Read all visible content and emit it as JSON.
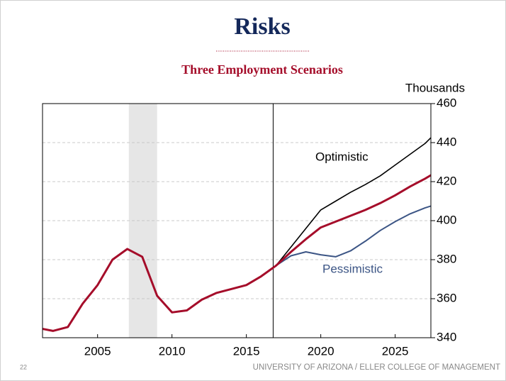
{
  "chart_data": {
    "type": "line",
    "title": "Risks",
    "subtitle": "Three Employment Scenarios",
    "y_axis_label": "Thousands",
    "x": [
      2001,
      2002,
      2003,
      2004,
      2005,
      2006,
      2007,
      2008,
      2009,
      2010,
      2011,
      2012,
      2013,
      2014,
      2015,
      2016,
      2017,
      2018,
      2019,
      2020,
      2021,
      2022,
      2023,
      2024,
      2025,
      2026,
      2027,
      2028
    ],
    "series": [
      {
        "color": "#a50d2a",
        "width": 3,
        "values": [
          345,
          343.5,
          345.5,
          357.5,
          367,
          380,
          385.5,
          381.5,
          361.5,
          353,
          354,
          359.5,
          363,
          365,
          367,
          371.5,
          377,
          384,
          390.5,
          396.5,
          399.5,
          402.5,
          405.5,
          409,
          413,
          417.5,
          421.5,
          426
        ]
      },
      {
        "name": "Optimistic",
        "color": "#000000",
        "width": 1.6,
        "values": [
          null,
          null,
          null,
          null,
          null,
          null,
          null,
          null,
          null,
          null,
          null,
          null,
          null,
          null,
          null,
          null,
          377,
          386.5,
          396,
          405.5,
          410,
          414.5,
          418.5,
          423,
          428.5,
          434,
          439.5,
          447
        ]
      },
      {
        "name": "Pessimistic",
        "color": "#3c5585",
        "width": 2,
        "values": [
          null,
          null,
          null,
          null,
          null,
          null,
          null,
          null,
          null,
          null,
          null,
          null,
          null,
          null,
          null,
          null,
          377,
          382,
          384,
          382.5,
          381.5,
          384.5,
          389.5,
          395,
          399.5,
          403.5,
          406.5,
          409
        ]
      }
    ],
    "xlim": [
      2001.3,
      2027.4
    ],
    "xticks": [
      2005,
      2010,
      2015,
      2020,
      2025
    ],
    "ylim": [
      340,
      460
    ],
    "yticks": [
      340,
      360,
      380,
      400,
      420,
      440,
      460
    ],
    "grid": true,
    "shaded_region": [
      2007.1,
      2009
    ],
    "vertical_line": 2016.8
  },
  "footer": {
    "page": "22",
    "text": "UNIVERSITY OF ARIZONA / ELLER COLLEGE OF MANAGEMENT"
  }
}
